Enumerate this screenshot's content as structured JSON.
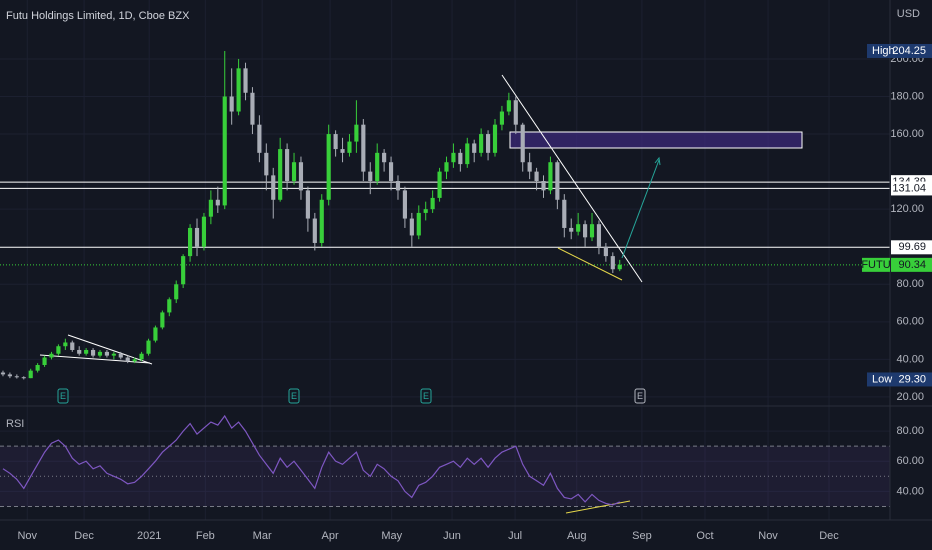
{
  "chart_data": {
    "type": "candlestick",
    "title": "Futu Holdings Limited, 1D, Cboe BZX",
    "currency": "USD",
    "up_color": "#38cf3a",
    "down_color": "#a9adb6",
    "xlim": [
      -0.43,
      128
    ],
    "xticks": [
      {
        "value": 3.5,
        "label": "Nov"
      },
      {
        "value": 11.7,
        "label": "Dec"
      },
      {
        "value": 21.1,
        "label": "2021"
      },
      {
        "value": 29.2,
        "label": "Feb"
      },
      {
        "value": 37.4,
        "label": "Mar"
      },
      {
        "value": 47.2,
        "label": "Apr"
      },
      {
        "value": 56.1,
        "label": "May"
      },
      {
        "value": 64.8,
        "label": "Jun"
      },
      {
        "value": 73.9,
        "label": "Jul"
      },
      {
        "value": 82.8,
        "label": "Aug"
      },
      {
        "value": 92.2,
        "label": "Sep"
      },
      {
        "value": 101.3,
        "label": "Oct"
      },
      {
        "value": 110.4,
        "label": "Nov"
      },
      {
        "value": 119.2,
        "label": "Dec"
      }
    ],
    "ylim": [
      15.7,
      231.4
    ],
    "yticks": [
      {
        "value": 20,
        "label": "20.00"
      },
      {
        "value": 40,
        "label": "40.00"
      },
      {
        "value": 60,
        "label": "60.00"
      },
      {
        "value": 80,
        "label": "80.00"
      },
      {
        "value": 120,
        "label": "120.00"
      },
      {
        "value": 160,
        "label": "160.00"
      },
      {
        "value": 180,
        "label": "180.00"
      },
      {
        "value": 200,
        "label": "200.00"
      }
    ],
    "grid": true,
    "candles": [
      [
        33,
        34,
        31,
        32
      ],
      [
        32,
        33,
        30,
        31
      ],
      [
        31,
        32,
        29.8,
        30.5
      ],
      [
        30.5,
        31,
        29.3,
        30
      ],
      [
        30,
        35,
        30,
        34
      ],
      [
        34,
        38,
        33,
        37
      ],
      [
        37,
        42,
        36,
        41
      ],
      [
        41,
        44,
        40,
        43
      ],
      [
        43,
        48,
        42,
        47
      ],
      [
        47,
        51,
        45,
        49
      ],
      [
        49,
        50,
        44,
        45
      ],
      [
        45,
        47,
        42,
        43
      ],
      [
        43,
        46,
        42,
        45
      ],
      [
        45,
        46,
        41,
        42
      ],
      [
        42,
        45,
        41,
        44
      ],
      [
        44,
        45,
        41,
        42
      ],
      [
        42,
        44,
        40,
        43
      ],
      [
        43,
        44,
        40,
        41
      ],
      [
        41,
        42,
        38,
        39
      ],
      [
        39,
        41,
        38,
        40
      ],
      [
        40,
        44,
        39,
        43
      ],
      [
        43,
        51,
        42,
        50
      ],
      [
        50,
        58,
        49,
        57
      ],
      [
        57,
        66,
        56,
        65
      ],
      [
        65,
        73,
        63,
        72
      ],
      [
        72,
        82,
        70,
        80
      ],
      [
        80,
        96,
        78,
        95
      ],
      [
        95,
        112,
        92,
        110
      ],
      [
        110,
        115,
        95,
        100
      ],
      [
        100,
        118,
        98,
        116
      ],
      [
        116,
        130,
        112,
        125
      ],
      [
        125,
        132,
        118,
        122
      ],
      [
        122,
        204.25,
        120,
        180
      ],
      [
        180,
        195,
        165,
        172
      ],
      [
        172,
        200,
        170,
        195
      ],
      [
        195,
        198,
        178,
        182
      ],
      [
        182,
        185,
        160,
        165
      ],
      [
        165,
        170,
        145,
        150
      ],
      [
        150,
        155,
        130,
        138
      ],
      [
        138,
        142,
        115,
        125
      ],
      [
        125,
        158,
        124,
        152
      ],
      [
        152,
        155,
        130,
        135
      ],
      [
        135,
        150,
        133,
        145
      ],
      [
        145,
        148,
        125,
        130
      ],
      [
        130,
        132,
        108,
        115
      ],
      [
        115,
        118,
        98,
        102
      ],
      [
        102,
        128,
        100,
        125
      ],
      [
        125,
        165,
        122,
        160
      ],
      [
        160,
        162,
        148,
        152
      ],
      [
        152,
        158,
        145,
        150
      ],
      [
        150,
        160,
        148,
        156
      ],
      [
        156,
        178,
        150,
        165
      ],
      [
        165,
        168,
        135,
        140
      ],
      [
        140,
        145,
        128,
        135
      ],
      [
        135,
        155,
        133,
        150
      ],
      [
        150,
        152,
        140,
        145
      ],
      [
        145,
        148,
        130,
        135
      ],
      [
        135,
        138,
        125,
        130
      ],
      [
        130,
        132,
        110,
        115
      ],
      [
        115,
        118,
        100,
        106
      ],
      [
        106,
        122,
        104,
        118
      ],
      [
        118,
        124,
        114,
        120
      ],
      [
        120,
        130,
        118,
        126
      ],
      [
        126,
        142,
        124,
        140
      ],
      [
        140,
        148,
        136,
        145
      ],
      [
        145,
        155,
        142,
        150
      ],
      [
        150,
        152,
        140,
        144
      ],
      [
        144,
        158,
        142,
        155
      ],
      [
        155,
        157,
        145,
        150
      ],
      [
        150,
        163,
        148,
        160
      ],
      [
        160,
        162,
        146,
        150
      ],
      [
        150,
        168,
        148,
        165
      ],
      [
        165,
        175,
        162,
        172
      ],
      [
        172,
        182,
        170,
        178
      ],
      [
        178,
        180,
        160,
        165
      ],
      [
        165,
        166,
        140,
        145
      ],
      [
        145,
        150,
        136,
        140
      ],
      [
        140,
        142,
        130,
        135
      ],
      [
        135,
        138,
        126,
        130
      ],
      [
        130,
        148,
        128,
        145
      ],
      [
        145,
        146,
        120,
        125
      ],
      [
        125,
        128,
        105,
        110
      ],
      [
        110,
        115,
        104,
        108
      ],
      [
        108,
        118,
        106,
        112
      ],
      [
        112,
        114,
        100,
        105
      ],
      [
        105,
        118,
        103,
        112
      ],
      [
        112,
        114,
        96,
        100
      ],
      [
        100,
        102,
        92,
        95
      ],
      [
        95,
        97,
        86,
        88
      ],
      [
        88,
        93,
        87,
        90.34
      ]
    ],
    "levels": [
      134.39,
      131.04,
      99.69
    ],
    "high": {
      "label": "High",
      "value": 204.25
    },
    "low": {
      "label": "Low",
      "value": 29.3,
      "value_label": "29.30"
    },
    "last": {
      "name": "FUTU",
      "value": 90.34,
      "color": "#38cf3a"
    },
    "earnings": [
      "E",
      "E",
      "E",
      "E"
    ],
    "rsi": {
      "name": "RSI",
      "color": "#7e57c2",
      "ylim": [
        21,
        96
      ],
      "yticks": [
        {
          "value": 40,
          "label": "40.00"
        },
        {
          "value": 60,
          "label": "60.00"
        },
        {
          "value": 80,
          "label": "80.00"
        }
      ],
      "upper_band": 70,
      "middle": 50,
      "lower_band": 30,
      "values": [
        55,
        52,
        48,
        42,
        50,
        58,
        66,
        72,
        74,
        70,
        62,
        58,
        60,
        55,
        57,
        52,
        50,
        48,
        45,
        46,
        50,
        55,
        60,
        66,
        70,
        74,
        80,
        85,
        78,
        82,
        86,
        84,
        90,
        82,
        86,
        80,
        72,
        64,
        58,
        52,
        62,
        56,
        60,
        54,
        48,
        42,
        56,
        66,
        60,
        58,
        62,
        66,
        54,
        50,
        58,
        55,
        50,
        47,
        40,
        36,
        44,
        46,
        50,
        56,
        58,
        60,
        56,
        62,
        58,
        62,
        56,
        62,
        66,
        68,
        70,
        58,
        50,
        47,
        44,
        52,
        42,
        36,
        35,
        38,
        33,
        38,
        34,
        32,
        31,
        33
      ]
    }
  }
}
